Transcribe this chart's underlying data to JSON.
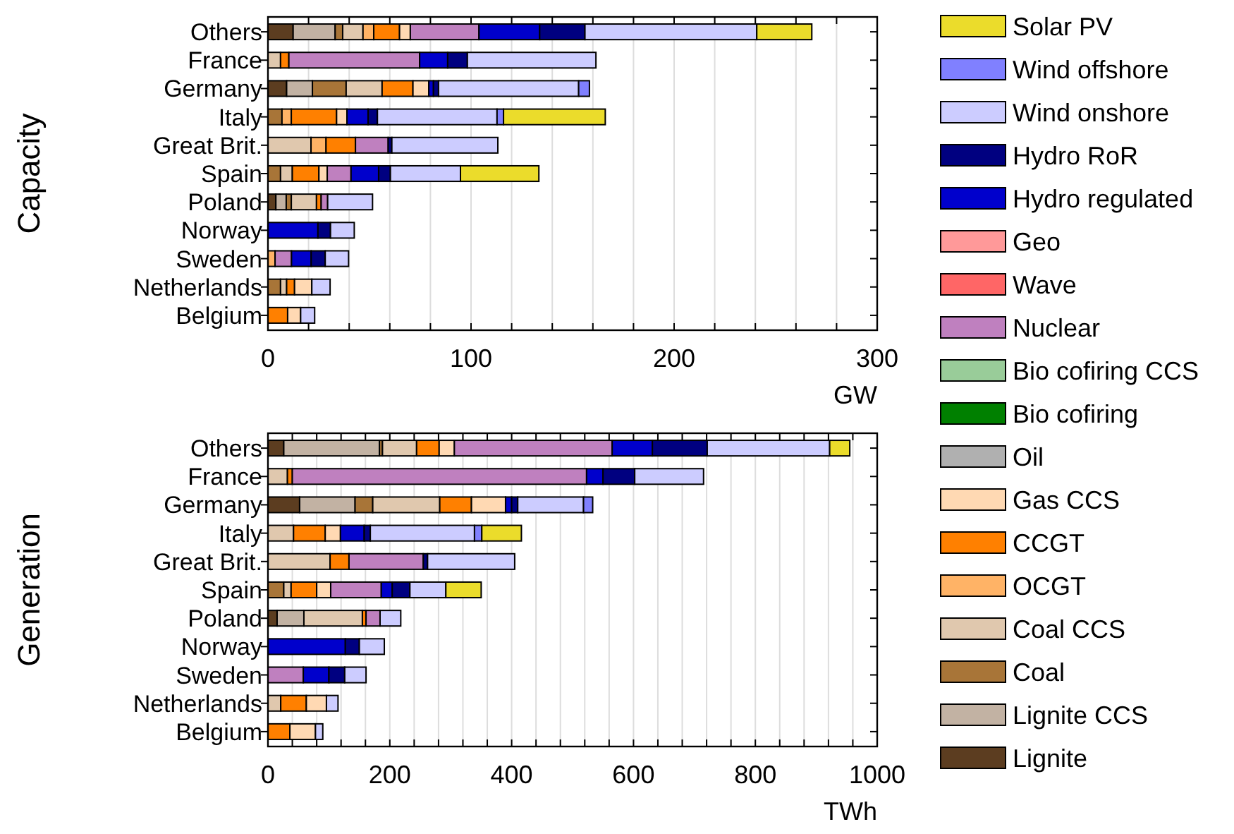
{
  "chart_data": [
    {
      "type": "bar",
      "orientation": "horizontal",
      "stacked": true,
      "ylabel": "Capacity",
      "xlabel": "GW",
      "grid": "x",
      "legend": "right",
      "categories": [
        "Others",
        "France",
        "Germany",
        "Italy",
        "Great Brit.",
        "Spain",
        "Poland",
        "Norway",
        "Sweden",
        "Netherlands",
        "Belgium"
      ],
      "xlim": [
        0,
        300
      ],
      "xticks": [
        0,
        {
          "value": 20,
          "label": null
        },
        {
          "value": 40,
          "label": null
        },
        {
          "value": 60,
          "label": null
        },
        {
          "value": 80,
          "label": null
        },
        100,
        {
          "value": 120,
          "label": null
        },
        {
          "value": 140,
          "label": null
        },
        {
          "value": 160,
          "label": null
        },
        {
          "value": 180,
          "label": null
        },
        200,
        {
          "value": 220,
          "label": null
        },
        {
          "value": 240,
          "label": null
        },
        {
          "value": 260,
          "label": null
        },
        {
          "value": 280,
          "label": null
        },
        300
      ],
      "series": [
        {
          "name": "Lignite",
          "color": "#5c3d20",
          "values": [
            12.4,
            0,
            9.2,
            0,
            0,
            0,
            3.9,
            0,
            0,
            0,
            0
          ]
        },
        {
          "name": "Lignite CCS",
          "color": "#c2b2a3",
          "values": [
            20.7,
            0,
            12.7,
            0,
            0,
            0,
            5.1,
            0,
            0,
            0,
            0
          ]
        },
        {
          "name": "Coal",
          "color": "#a87538",
          "values": [
            3.7,
            0,
            16.6,
            6.9,
            0,
            6.2,
            2.5,
            0,
            0,
            6.2,
            null
          ]
        },
        {
          "name": "Coal CCS",
          "color": "#e0c8ae",
          "values": [
            10,
            6.2,
            17.7,
            0,
            21.2,
            5.8,
            12.4,
            0,
            0,
            3,
            0
          ]
        },
        {
          "name": "OCGT",
          "color": "#ffb366",
          "values": [
            5.3,
            0,
            0,
            4.6,
            7.4,
            0,
            0,
            0,
            3.5,
            0,
            0
          ]
        },
        {
          "name": "CCGT",
          "color": "#ff8000",
          "values": [
            12.7,
            4.1,
            15.2,
            22.3,
            14.5,
            13.1,
            2.3,
            0,
            0,
            3.9,
            9.7
          ]
        },
        {
          "name": "Gas CCS",
          "color": "#ffd9b3",
          "values": [
            5.3,
            0,
            7.8,
            5.1,
            0,
            4.1,
            0,
            0,
            0,
            8.5,
            6.4
          ]
        },
        {
          "name": "Oil",
          "color": "#b0b0b0",
          "values": [
            0,
            0,
            0,
            0,
            0,
            0,
            0,
            0,
            0,
            0,
            0
          ]
        },
        {
          "name": "Bio cofiring",
          "color": "#008000",
          "values": [
            0,
            0,
            0,
            0,
            0,
            0,
            0,
            0,
            0,
            0,
            0
          ]
        },
        {
          "name": "Bio cofiring CCS",
          "color": "#99cc99",
          "values": [
            0,
            0,
            0,
            0,
            0,
            0,
            0,
            0,
            0,
            0,
            0
          ]
        },
        {
          "name": "Nuclear",
          "color": "#bf80bf",
          "values": [
            33.8,
            64.4,
            0,
            0,
            16.1,
            11.7,
            3.2,
            0,
            8.1,
            0,
            0
          ]
        },
        {
          "name": "Wave",
          "color": "#ff6666",
          "values": [
            0,
            0,
            0,
            0,
            0,
            0,
            0,
            0,
            0,
            0,
            0
          ]
        },
        {
          "name": "Geo",
          "color": "#ff9999",
          "values": [
            0,
            0,
            0,
            0,
            0,
            0,
            0,
            0,
            0,
            0,
            0
          ]
        },
        {
          "name": "Hydro regulated",
          "color": "#0000cc",
          "values": [
            29.9,
            13.8,
            2.3,
            10.4,
            0,
            13.6,
            0,
            24.6,
            9.7,
            0,
            0
          ]
        },
        {
          "name": "Hydro RoR",
          "color": "#000080",
          "values": [
            22.3,
            9.7,
            2.5,
            4.6,
            1.8,
            5.8,
            0,
            6.2,
            6.9,
            0,
            0
          ]
        },
        {
          "name": "Wind onshore",
          "color": "#ccccff",
          "values": [
            84.6,
            63.3,
            69,
            58.9,
            52.2,
            34.5,
            22.1,
            11.7,
            11.5,
            9,
            6.9
          ]
        },
        {
          "name": "Wind offshore",
          "color": "#8080ff",
          "values": [
            0,
            0,
            5.3,
            3.2,
            0,
            0,
            0,
            0,
            0,
            0,
            0
          ]
        },
        {
          "name": "Solar PV",
          "color": "#ebdc2b",
          "values": [
            27.1,
            0,
            0,
            50.1,
            0,
            38.6,
            0,
            0,
            0,
            0,
            0
          ]
        }
      ]
    },
    {
      "type": "bar",
      "orientation": "horizontal",
      "stacked": true,
      "ylabel": "Generation",
      "xlabel": "TWh",
      "grid": "x",
      "legend": "right",
      "categories": [
        "Others",
        "France",
        "Germany",
        "Italy",
        "Great Brit.",
        "Spain",
        "Poland",
        "Norway",
        "Sweden",
        "Netherlands",
        "Belgium"
      ],
      "xlim": [
        0,
        1000
      ],
      "xticks": [
        0,
        {
          "value": 40,
          "label": null
        },
        {
          "value": 80,
          "label": null
        },
        {
          "value": 120,
          "label": null
        },
        {
          "value": 160,
          "label": null
        },
        200,
        {
          "value": 240,
          "label": null
        },
        {
          "value": 280,
          "label": null
        },
        {
          "value": 320,
          "label": null
        },
        {
          "value": 360,
          "label": null
        },
        400,
        {
          "value": 440,
          "label": null
        },
        {
          "value": 480,
          "label": null
        },
        {
          "value": 520,
          "label": null
        },
        {
          "value": 560,
          "label": null
        },
        600,
        {
          "value": 640,
          "label": null
        },
        {
          "value": 680,
          "label": null
        },
        {
          "value": 720,
          "label": null
        },
        {
          "value": 760,
          "label": null
        },
        800,
        {
          "value": 840,
          "label": null
        },
        {
          "value": 880,
          "label": null
        },
        {
          "value": 920,
          "label": null
        },
        {
          "value": 960,
          "label": null
        },
        1000
      ],
      "series": [
        {
          "name": "Lignite",
          "color": "#5c3d20",
          "values": [
            26,
            0,
            52,
            0,
            0,
            0,
            15,
            0,
            0,
            0,
            0
          ]
        },
        {
          "name": "Lignite CCS",
          "color": "#c2b2a3",
          "values": [
            157,
            0,
            91,
            0,
            0,
            0,
            44,
            0,
            0,
            0,
            0
          ]
        },
        {
          "name": "Coal",
          "color": "#a87538",
          "values": [
            5,
            0,
            29,
            0,
            0,
            26,
            0,
            0,
            0,
            0,
            null
          ]
        },
        {
          "name": "Coal CCS",
          "color": "#e0c8ae",
          "values": [
            56,
            32,
            110,
            42,
            102,
            12,
            96,
            0,
            0,
            21,
            0
          ]
        },
        {
          "name": "CCGT",
          "color": "#ff8000",
          "values": [
            37,
            8,
            52,
            52,
            31,
            42,
            6,
            0,
            0,
            42,
            36
          ]
        },
        {
          "name": "Gas CCS",
          "color": "#ffd9b3",
          "values": [
            25,
            0,
            56,
            25,
            0,
            23,
            0,
            0,
            0,
            33,
            42
          ]
        },
        {
          "name": "Nuclear",
          "color": "#bf80bf",
          "values": [
            259,
            483,
            0,
            0,
            122,
            83,
            23,
            0,
            58,
            0,
            0
          ]
        },
        {
          "name": "Hydro regulated",
          "color": "#0000cc",
          "values": [
            66,
            27,
            10,
            39,
            0,
            18,
            0,
            127,
            42,
            0,
            0
          ]
        },
        {
          "name": "Hydro RoR",
          "color": "#000080",
          "values": [
            90,
            52,
            10,
            10,
            7,
            29,
            0,
            23,
            26,
            0,
            0
          ]
        },
        {
          "name": "Wind onshore",
          "color": "#ccccff",
          "values": [
            201,
            113,
            108,
            171,
            143,
            59,
            34,
            41,
            35,
            19,
            12
          ]
        },
        {
          "name": "Wind offshore",
          "color": "#8080ff",
          "values": [
            0,
            0,
            15,
            12,
            0,
            0,
            0,
            0,
            0,
            0,
            0
          ]
        },
        {
          "name": "Solar PV",
          "color": "#ebdc2b",
          "values": [
            33,
            0,
            0,
            65,
            0,
            58,
            0,
            0,
            0,
            0,
            0
          ]
        }
      ]
    }
  ]
}
